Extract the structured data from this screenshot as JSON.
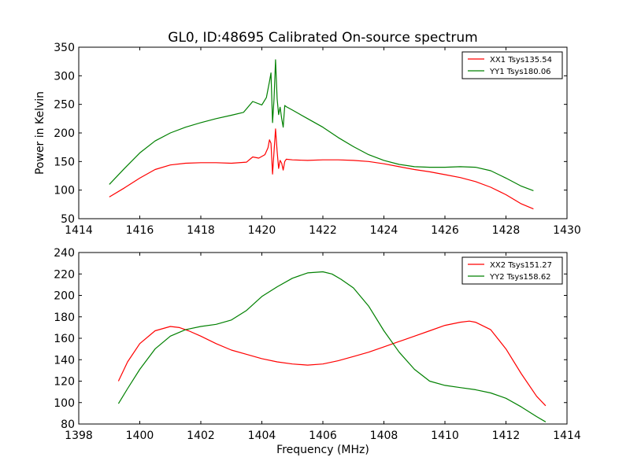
{
  "figure": {
    "title": "GL0, ID:48695 Calibrated On-source spectrum"
  },
  "chart_data": [
    {
      "type": "line",
      "title": "GL0, ID:48695 Calibrated On-source spectrum",
      "xlabel": "",
      "ylabel": "Power in Kelvin",
      "xlim": [
        1414,
        1430
      ],
      "ylim": [
        50,
        350
      ],
      "xticks": [
        1414,
        1416,
        1418,
        1420,
        1422,
        1424,
        1426,
        1428,
        1430
      ],
      "yticks": [
        50,
        100,
        150,
        200,
        250,
        300,
        350
      ],
      "xtick_labels": [
        "1414",
        "1416",
        "1418",
        "1420",
        "1422",
        "1424",
        "1426",
        "1428",
        "1430"
      ],
      "ytick_labels": [
        "50",
        "100",
        "150",
        "200",
        "250",
        "300",
        "350"
      ],
      "grid": false,
      "legend_position": "top-right",
      "series": [
        {
          "name": "XX1 Tsys135.54",
          "color": "#ff0000",
          "x": [
            1415.0,
            1415.5,
            1416.0,
            1416.5,
            1417.0,
            1417.5,
            1418.0,
            1418.5,
            1419.0,
            1419.5,
            1419.7,
            1419.9,
            1420.1,
            1420.2,
            1420.25,
            1420.3,
            1420.35,
            1420.4,
            1420.45,
            1420.5,
            1420.55,
            1420.6,
            1420.65,
            1420.7,
            1420.75,
            1420.8,
            1421.0,
            1421.5,
            1422.0,
            1422.5,
            1423.0,
            1423.5,
            1424.0,
            1424.5,
            1425.0,
            1425.5,
            1426.0,
            1426.5,
            1427.0,
            1427.5,
            1428.0,
            1428.5,
            1428.9
          ],
          "y": [
            88,
            104,
            121,
            136,
            144,
            147,
            148,
            148,
            147,
            149,
            158,
            156,
            162,
            174,
            188,
            182,
            128,
            168,
            207,
            168,
            138,
            152,
            147,
            135,
            150,
            154,
            153,
            152,
            153,
            153,
            152,
            150,
            146,
            141,
            136,
            132,
            127,
            122,
            115,
            105,
            92,
            76,
            67
          ]
        },
        {
          "name": "YY1 Tsys180.06",
          "color": "#008000",
          "x": [
            1415.0,
            1415.5,
            1416.0,
            1416.5,
            1417.0,
            1417.5,
            1418.0,
            1418.5,
            1419.0,
            1419.4,
            1419.7,
            1420.0,
            1420.15,
            1420.25,
            1420.3,
            1420.35,
            1420.4,
            1420.45,
            1420.5,
            1420.55,
            1420.6,
            1420.65,
            1420.7,
            1420.75,
            1420.8,
            1421.0,
            1421.5,
            1422.0,
            1422.5,
            1423.0,
            1423.5,
            1424.0,
            1424.5,
            1425.0,
            1425.5,
            1426.0,
            1426.5,
            1427.0,
            1427.5,
            1428.0,
            1428.5,
            1428.9
          ],
          "y": [
            110,
            138,
            165,
            186,
            200,
            210,
            218,
            225,
            231,
            236,
            255,
            249,
            262,
            290,
            305,
            218,
            260,
            328,
            260,
            232,
            245,
            225,
            210,
            248,
            246,
            240,
            225,
            210,
            192,
            176,
            162,
            152,
            145,
            141,
            140,
            140,
            141,
            140,
            134,
            121,
            107,
            99
          ]
        }
      ]
    },
    {
      "type": "line",
      "title": "",
      "xlabel": "Frequency (MHz)",
      "ylabel": "",
      "xlim": [
        1398,
        1414
      ],
      "ylim": [
        80,
        240
      ],
      "xticks": [
        1398,
        1400,
        1402,
        1404,
        1406,
        1408,
        1410,
        1412,
        1414
      ],
      "yticks": [
        80,
        100,
        120,
        140,
        160,
        180,
        200,
        220,
        240
      ],
      "xtick_labels": [
        "1398",
        "1400",
        "1402",
        "1404",
        "1406",
        "1408",
        "1410",
        "1412",
        "1414"
      ],
      "ytick_labels": [
        "80",
        "100",
        "120",
        "140",
        "160",
        "180",
        "200",
        "220",
        "240"
      ],
      "grid": false,
      "legend_position": "top-right",
      "series": [
        {
          "name": "XX2 Tsys151.27",
          "color": "#ff0000",
          "x": [
            1399.3,
            1399.6,
            1400.0,
            1400.5,
            1401.0,
            1401.3,
            1401.6,
            1402.0,
            1402.5,
            1403.0,
            1403.5,
            1404.0,
            1404.5,
            1405.0,
            1405.5,
            1406.0,
            1406.5,
            1407.0,
            1407.5,
            1408.0,
            1408.5,
            1409.0,
            1409.5,
            1410.0,
            1410.5,
            1410.8,
            1411.0,
            1411.5,
            1412.0,
            1412.5,
            1413.0,
            1413.3
          ],
          "y": [
            120,
            138,
            155,
            167,
            171,
            170,
            167,
            162,
            155,
            149,
            145,
            141,
            138,
            136,
            135,
            136,
            139,
            143,
            147,
            152,
            157,
            162,
            167,
            172,
            175,
            176,
            175,
            168,
            150,
            127,
            106,
            97
          ]
        },
        {
          "name": "YY2 Tsys158.62",
          "color": "#008000",
          "x": [
            1399.3,
            1399.6,
            1400.0,
            1400.5,
            1401.0,
            1401.5,
            1402.0,
            1402.5,
            1403.0,
            1403.5,
            1404.0,
            1404.5,
            1405.0,
            1405.5,
            1406.0,
            1406.3,
            1406.6,
            1407.0,
            1407.5,
            1408.0,
            1408.5,
            1409.0,
            1409.5,
            1410.0,
            1410.5,
            1411.0,
            1411.5,
            1412.0,
            1412.5,
            1413.0,
            1413.3
          ],
          "y": [
            99,
            113,
            131,
            150,
            162,
            168,
            171,
            173,
            177,
            186,
            199,
            208,
            216,
            221,
            222,
            220,
            215,
            207,
            190,
            167,
            147,
            131,
            120,
            116,
            114,
            112,
            109,
            104,
            96,
            87,
            82
          ]
        }
      ]
    }
  ]
}
